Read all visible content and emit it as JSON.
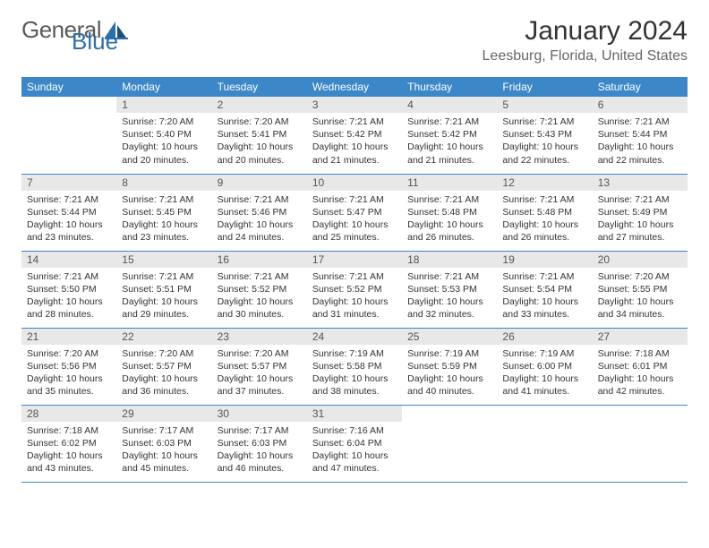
{
  "brand": {
    "name": "General",
    "accent": "Blue"
  },
  "title": "January 2024",
  "location": "Leesburg, Florida, United States",
  "colors": {
    "header_bg": "#3b87c8",
    "header_fg": "#ffffff",
    "daynum_bg": "#e8e8e8",
    "border": "#3b87c8",
    "text": "#333333",
    "logo_gray": "#5a5a5a",
    "logo_blue": "#2f6fa8"
  },
  "weekdays": [
    "Sunday",
    "Monday",
    "Tuesday",
    "Wednesday",
    "Thursday",
    "Friday",
    "Saturday"
  ],
  "start_offset": 1,
  "days": [
    {
      "n": 1,
      "sunrise": "7:20 AM",
      "sunset": "5:40 PM",
      "dl_h": 10,
      "dl_m": 20
    },
    {
      "n": 2,
      "sunrise": "7:20 AM",
      "sunset": "5:41 PM",
      "dl_h": 10,
      "dl_m": 20
    },
    {
      "n": 3,
      "sunrise": "7:21 AM",
      "sunset": "5:42 PM",
      "dl_h": 10,
      "dl_m": 21
    },
    {
      "n": 4,
      "sunrise": "7:21 AM",
      "sunset": "5:42 PM",
      "dl_h": 10,
      "dl_m": 21
    },
    {
      "n": 5,
      "sunrise": "7:21 AM",
      "sunset": "5:43 PM",
      "dl_h": 10,
      "dl_m": 22
    },
    {
      "n": 6,
      "sunrise": "7:21 AM",
      "sunset": "5:44 PM",
      "dl_h": 10,
      "dl_m": 22
    },
    {
      "n": 7,
      "sunrise": "7:21 AM",
      "sunset": "5:44 PM",
      "dl_h": 10,
      "dl_m": 23
    },
    {
      "n": 8,
      "sunrise": "7:21 AM",
      "sunset": "5:45 PM",
      "dl_h": 10,
      "dl_m": 23
    },
    {
      "n": 9,
      "sunrise": "7:21 AM",
      "sunset": "5:46 PM",
      "dl_h": 10,
      "dl_m": 24
    },
    {
      "n": 10,
      "sunrise": "7:21 AM",
      "sunset": "5:47 PM",
      "dl_h": 10,
      "dl_m": 25
    },
    {
      "n": 11,
      "sunrise": "7:21 AM",
      "sunset": "5:48 PM",
      "dl_h": 10,
      "dl_m": 26
    },
    {
      "n": 12,
      "sunrise": "7:21 AM",
      "sunset": "5:48 PM",
      "dl_h": 10,
      "dl_m": 26
    },
    {
      "n": 13,
      "sunrise": "7:21 AM",
      "sunset": "5:49 PM",
      "dl_h": 10,
      "dl_m": 27
    },
    {
      "n": 14,
      "sunrise": "7:21 AM",
      "sunset": "5:50 PM",
      "dl_h": 10,
      "dl_m": 28
    },
    {
      "n": 15,
      "sunrise": "7:21 AM",
      "sunset": "5:51 PM",
      "dl_h": 10,
      "dl_m": 29
    },
    {
      "n": 16,
      "sunrise": "7:21 AM",
      "sunset": "5:52 PM",
      "dl_h": 10,
      "dl_m": 30
    },
    {
      "n": 17,
      "sunrise": "7:21 AM",
      "sunset": "5:52 PM",
      "dl_h": 10,
      "dl_m": 31
    },
    {
      "n": 18,
      "sunrise": "7:21 AM",
      "sunset": "5:53 PM",
      "dl_h": 10,
      "dl_m": 32
    },
    {
      "n": 19,
      "sunrise": "7:21 AM",
      "sunset": "5:54 PM",
      "dl_h": 10,
      "dl_m": 33
    },
    {
      "n": 20,
      "sunrise": "7:20 AM",
      "sunset": "5:55 PM",
      "dl_h": 10,
      "dl_m": 34
    },
    {
      "n": 21,
      "sunrise": "7:20 AM",
      "sunset": "5:56 PM",
      "dl_h": 10,
      "dl_m": 35
    },
    {
      "n": 22,
      "sunrise": "7:20 AM",
      "sunset": "5:57 PM",
      "dl_h": 10,
      "dl_m": 36
    },
    {
      "n": 23,
      "sunrise": "7:20 AM",
      "sunset": "5:57 PM",
      "dl_h": 10,
      "dl_m": 37
    },
    {
      "n": 24,
      "sunrise": "7:19 AM",
      "sunset": "5:58 PM",
      "dl_h": 10,
      "dl_m": 38
    },
    {
      "n": 25,
      "sunrise": "7:19 AM",
      "sunset": "5:59 PM",
      "dl_h": 10,
      "dl_m": 40
    },
    {
      "n": 26,
      "sunrise": "7:19 AM",
      "sunset": "6:00 PM",
      "dl_h": 10,
      "dl_m": 41
    },
    {
      "n": 27,
      "sunrise": "7:18 AM",
      "sunset": "6:01 PM",
      "dl_h": 10,
      "dl_m": 42
    },
    {
      "n": 28,
      "sunrise": "7:18 AM",
      "sunset": "6:02 PM",
      "dl_h": 10,
      "dl_m": 43
    },
    {
      "n": 29,
      "sunrise": "7:17 AM",
      "sunset": "6:03 PM",
      "dl_h": 10,
      "dl_m": 45
    },
    {
      "n": 30,
      "sunrise": "7:17 AM",
      "sunset": "6:03 PM",
      "dl_h": 10,
      "dl_m": 46
    },
    {
      "n": 31,
      "sunrise": "7:16 AM",
      "sunset": "6:04 PM",
      "dl_h": 10,
      "dl_m": 47
    }
  ]
}
